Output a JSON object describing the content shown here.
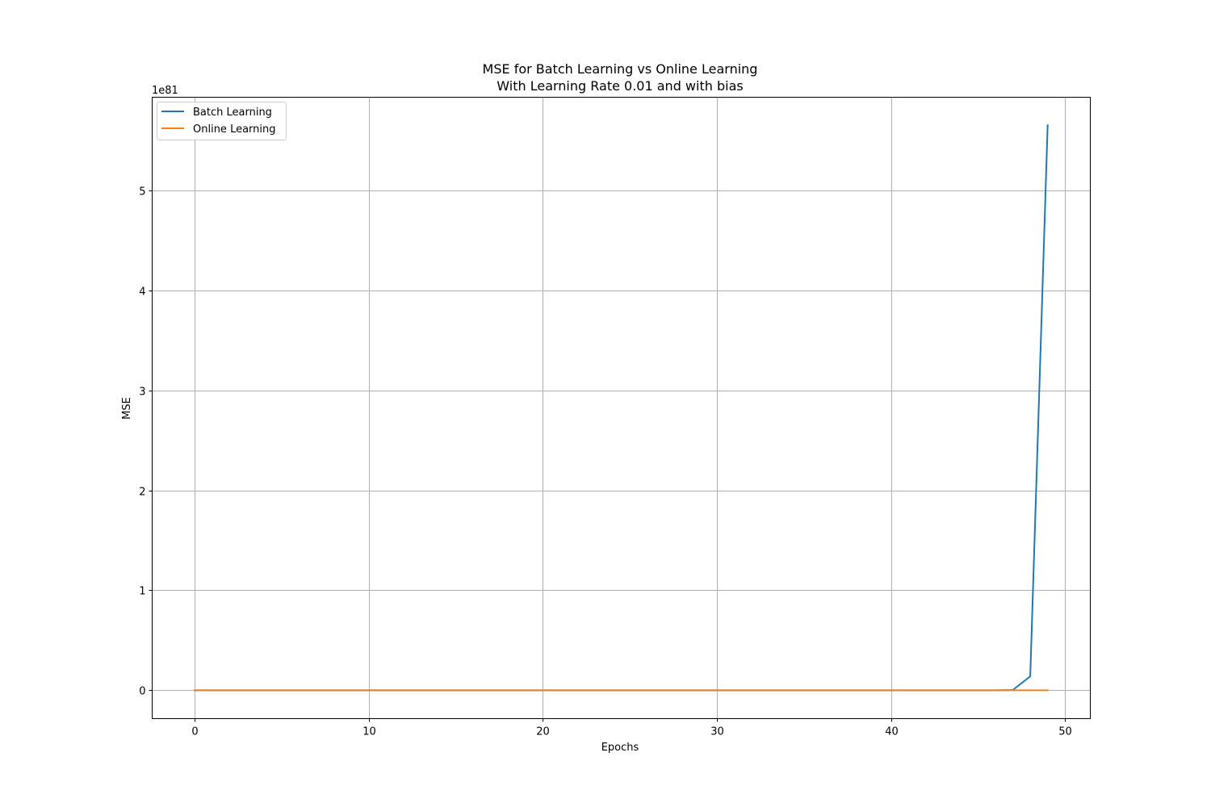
{
  "chart_data": {
    "type": "line",
    "title": [
      "MSE for Batch Learning vs Online Learning",
      "With Learning Rate 0.01 and with bias"
    ],
    "xlabel": "Epochs",
    "ylabel": "MSE",
    "y_offset_label": "1e81",
    "xlim": [
      -2.45,
      51.45
    ],
    "ylim": [
      -0.283,
      5.93
    ],
    "xticks": [
      0,
      10,
      20,
      30,
      40,
      50
    ],
    "xtick_labels": [
      "0",
      "10",
      "20",
      "30",
      "40",
      "50"
    ],
    "yticks": [
      0,
      1,
      2,
      3,
      4,
      5
    ],
    "ytick_labels": [
      "0",
      "1",
      "2",
      "3",
      "4",
      "5"
    ],
    "grid": true,
    "legend_position": "upper-left",
    "series": [
      {
        "name": "Batch Learning",
        "color": "#1f77b4",
        "x": [
          0,
          1,
          2,
          3,
          4,
          5,
          6,
          7,
          8,
          9,
          10,
          11,
          12,
          13,
          14,
          15,
          16,
          17,
          18,
          19,
          20,
          21,
          22,
          23,
          24,
          25,
          26,
          27,
          28,
          29,
          30,
          31,
          32,
          33,
          34,
          35,
          36,
          37,
          38,
          39,
          40,
          41,
          42,
          43,
          44,
          45,
          46,
          47,
          48,
          49
        ],
        "y": [
          0,
          0,
          0,
          0,
          0,
          0,
          0,
          0,
          0,
          0,
          0,
          0,
          0,
          0,
          0,
          0,
          0,
          0,
          0,
          0,
          0,
          0,
          0,
          0,
          0,
          0,
          0,
          0,
          0,
          0,
          0,
          0,
          0,
          0,
          0,
          0,
          0,
          0,
          0,
          0,
          0,
          0,
          0,
          0,
          0,
          0,
          0.0003,
          0.0035,
          0.14,
          5.65
        ]
      },
      {
        "name": "Online Learning",
        "color": "#ff7f0e",
        "x": [
          0,
          1,
          2,
          3,
          4,
          5,
          6,
          7,
          8,
          9,
          10,
          11,
          12,
          13,
          14,
          15,
          16,
          17,
          18,
          19,
          20,
          21,
          22,
          23,
          24,
          25,
          26,
          27,
          28,
          29,
          30,
          31,
          32,
          33,
          34,
          35,
          36,
          37,
          38,
          39,
          40,
          41,
          42,
          43,
          44,
          45,
          46,
          47,
          48,
          49
        ],
        "y": [
          0,
          0,
          0,
          0,
          0,
          0,
          0,
          0,
          0,
          0,
          0,
          0,
          0,
          0,
          0,
          0,
          0,
          0,
          0,
          0,
          0,
          0,
          0,
          0,
          0,
          0,
          0,
          0,
          0,
          0,
          0,
          0,
          0,
          0,
          0,
          0,
          0,
          0,
          0,
          0,
          0,
          0,
          0,
          0,
          0,
          0,
          0,
          0,
          0,
          0
        ]
      }
    ]
  }
}
